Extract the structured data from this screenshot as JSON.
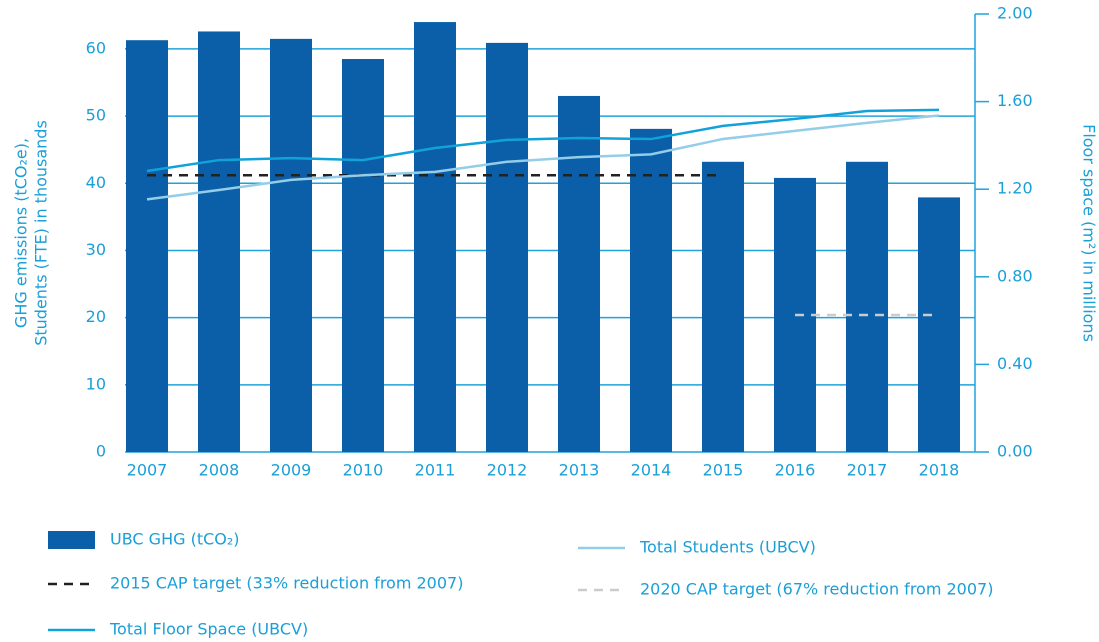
{
  "chart_data": {
    "type": "bar",
    "ylabel": [
      "GHG emissions (tCO₂e),",
      "Students (FTE) in thousands"
    ],
    "y2label": "Floor space (m²) in millions",
    "categories": [
      "2007",
      "2008",
      "2009",
      "2010",
      "2011",
      "2012",
      "2013",
      "2014",
      "2015",
      "2016",
      "2017",
      "2018"
    ],
    "series": [
      {
        "name": "UBC GHG (tCO₂)",
        "type": "bar",
        "color": "#0b5ea8",
        "values": [
          61.3,
          62.6,
          61.5,
          58.5,
          64.0,
          60.9,
          53.0,
          48.1,
          43.2,
          40.8,
          43.2,
          37.9
        ]
      },
      {
        "name": "2015 CAP target (33% reduction from 2007)",
        "type": "line",
        "dashed": true,
        "color": "#222222",
        "values": [
          41.2,
          41.2,
          41.2,
          41.2,
          41.2,
          41.2,
          41.2,
          41.2,
          41.2,
          null,
          null,
          null
        ]
      },
      {
        "name": "Total Floor Space (UBCV)",
        "type": "line",
        "axis": "y2",
        "color": "#12a2da",
        "values": [
          1.283,
          1.333,
          1.342,
          1.333,
          1.388,
          1.425,
          1.434,
          1.429,
          1.489,
          1.521,
          1.557,
          1.562
        ]
      },
      {
        "name": "Total Students (UBCV)",
        "type": "line",
        "color": "#93cde8",
        "values": [
          37.6,
          39.0,
          40.5,
          41.2,
          41.7,
          43.2,
          43.9,
          44.3,
          46.6,
          47.8,
          49.0,
          50.1
        ]
      },
      {
        "name": "2020 CAP target (67% reduction from 2007)",
        "type": "line",
        "dashed": true,
        "color": "#cccccc",
        "values": [
          null,
          null,
          null,
          null,
          null,
          null,
          null,
          null,
          null,
          20.4,
          20.4,
          20.4
        ]
      }
    ],
    "ylim": [
      0,
      65.2
    ],
    "yticks": [
      0,
      10,
      20,
      30,
      40,
      50,
      60
    ],
    "y2lim": [
      0,
      2.0
    ],
    "y2ticks": [
      {
        "value": 0,
        "label": "0.00"
      },
      {
        "value": 0.4,
        "label": "0.40"
      },
      {
        "value": 0.8,
        "label": "0.80"
      },
      {
        "value": 1.2,
        "label": "1.20"
      },
      {
        "value": 1.6,
        "label": "1.60"
      },
      {
        "value": 2.0,
        "label": "2.00"
      }
    ],
    "grid": true
  }
}
